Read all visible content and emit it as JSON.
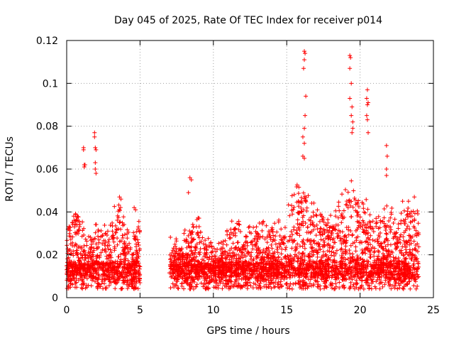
{
  "chart_data": {
    "type": "scatter",
    "title": "Day 045 of 2025, Rate Of TEC Index for receiver p014",
    "xlabel": "GPS time / hours",
    "ylabel": "ROTI / TECUs",
    "xlim": [
      0,
      25
    ],
    "ylim": [
      0,
      0.12
    ],
    "x_ticks": [
      0,
      5,
      10,
      15,
      20,
      25
    ],
    "y_ticks": [
      0,
      0.02,
      0.04,
      0.06,
      0.08,
      0.1,
      0.12
    ],
    "x_tick_labels": [
      "0",
      "5",
      "10",
      "15",
      "20",
      "25"
    ],
    "y_tick_labels": [
      "0",
      "0.02",
      "0.04",
      "0.06",
      "0.08",
      "0.1",
      "0.12"
    ],
    "grid": true,
    "marker": "+",
    "marker_color": "#ff0000",
    "data_gap_hours": [
      5.0,
      7.0
    ],
    "series": [
      {
        "name": "ROTI",
        "points": [
          [
            1.15,
            0.07
          ],
          [
            1.15,
            0.069
          ],
          [
            1.2,
            0.062
          ],
          [
            1.2,
            0.061
          ],
          [
            1.25,
            0.062
          ],
          [
            1.9,
            0.077
          ],
          [
            1.9,
            0.075
          ],
          [
            1.95,
            0.07
          ],
          [
            2.0,
            0.069
          ],
          [
            1.95,
            0.063
          ],
          [
            1.95,
            0.06
          ],
          [
            2.0,
            0.058
          ],
          [
            3.6,
            0.047
          ],
          [
            3.7,
            0.046
          ],
          [
            4.6,
            0.042
          ],
          [
            4.7,
            0.041
          ],
          [
            8.4,
            0.056
          ],
          [
            8.5,
            0.055
          ],
          [
            8.3,
            0.049
          ],
          [
            16.2,
            0.115
          ],
          [
            16.25,
            0.114
          ],
          [
            16.2,
            0.111
          ],
          [
            16.15,
            0.107
          ],
          [
            16.3,
            0.094
          ],
          [
            16.25,
            0.085
          ],
          [
            16.2,
            0.079
          ],
          [
            16.1,
            0.075
          ],
          [
            16.2,
            0.072
          ],
          [
            16.1,
            0.066
          ],
          [
            16.2,
            0.065
          ],
          [
            19.3,
            0.113
          ],
          [
            19.35,
            0.112
          ],
          [
            19.3,
            0.107
          ],
          [
            19.4,
            0.1
          ],
          [
            19.3,
            0.093
          ],
          [
            19.45,
            0.089
          ],
          [
            19.4,
            0.085
          ],
          [
            19.5,
            0.082
          ],
          [
            19.5,
            0.079
          ],
          [
            19.45,
            0.077
          ],
          [
            20.5,
            0.097
          ],
          [
            20.45,
            0.093
          ],
          [
            20.55,
            0.091
          ],
          [
            20.5,
            0.09
          ],
          [
            20.45,
            0.085
          ],
          [
            20.5,
            0.083
          ],
          [
            20.55,
            0.077
          ],
          [
            21.8,
            0.071
          ],
          [
            21.85,
            0.066
          ],
          [
            21.8,
            0.06
          ],
          [
            21.8,
            0.057
          ],
          [
            23.7,
            0.047
          ],
          [
            23.3,
            0.045
          ],
          [
            22.9,
            0.045
          ]
        ]
      }
    ]
  }
}
